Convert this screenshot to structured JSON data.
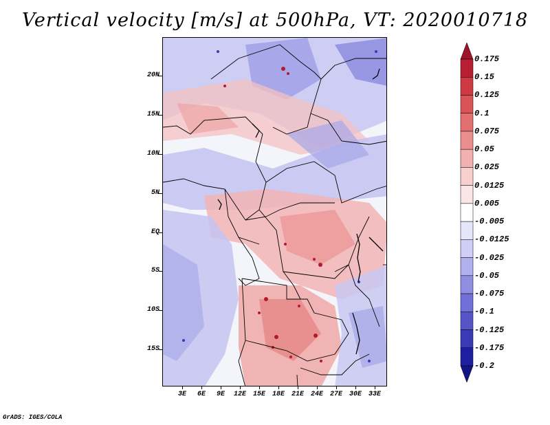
{
  "title": "Vertical velocity [m/s] at 500hPa, VT: 2020010718",
  "footer": "GrADS: IGES/COLA",
  "y_axis": [
    "20N",
    "15N",
    "10N",
    "5N",
    "EQ",
    "5S",
    "10S",
    "15S"
  ],
  "x_axis": [
    "3E",
    "6E",
    "9E",
    "12E",
    "15E",
    "18E",
    "21E",
    "24E",
    "27E",
    "30E",
    "33E"
  ],
  "colorbar": {
    "labels": [
      "0.175",
      "0.15",
      "0.125",
      "0.1",
      "0.075",
      "0.05",
      "0.025",
      "0.0125",
      "0.005",
      "-0.005",
      "-0.0125",
      "-0.025",
      "-0.05",
      "-0.075",
      "-0.1",
      "-0.125",
      "-0.175",
      "-0.2"
    ],
    "colors": [
      "#a0142a",
      "#b81e32",
      "#cd3a42",
      "#d95555",
      "#e27070",
      "#ea8e8e",
      "#f2b0b0",
      "#f8cfcf",
      "#fbe6e6",
      "#ffffff",
      "#e6e6fb",
      "#cfcff6",
      "#b0b0ee",
      "#8e8ee2",
      "#7070d8",
      "#5555c8",
      "#3a3ab5",
      "#1e1ea0",
      "#141485"
    ]
  },
  "region": "Central Africa, 0E–35E, 20S–25N"
}
